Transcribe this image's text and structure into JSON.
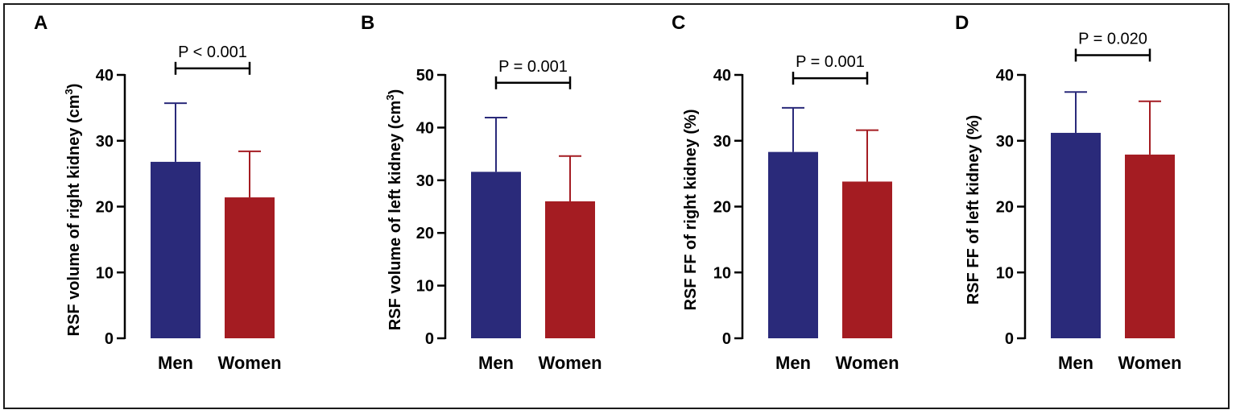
{
  "figure": {
    "colors": {
      "men": "#2a2a7a",
      "women": "#a41c22",
      "axis": "#000000"
    }
  },
  "chart_data": [
    {
      "type": "bar",
      "panel": "A",
      "categories": [
        "Men",
        "Women"
      ],
      "values": [
        26.8,
        21.4
      ],
      "errors": [
        8.9,
        7.0
      ],
      "ylabel": "RSF volume of right kidney (cm",
      "ylabel_superscript": "3",
      "ylabel_suffix": ")",
      "ylim": [
        0,
        40
      ],
      "yticks": [
        0,
        10,
        20,
        30,
        40
      ],
      "annotation": "P < 0.001",
      "annotation_y": 41
    },
    {
      "type": "bar",
      "panel": "B",
      "categories": [
        "Men",
        "Women"
      ],
      "values": [
        31.6,
        26.0
      ],
      "errors": [
        10.3,
        8.6
      ],
      "ylabel": "RSF volume of left kidney (cm",
      "ylabel_superscript": "3",
      "ylabel_suffix": ")",
      "ylim": [
        0,
        50
      ],
      "yticks": [
        0,
        10,
        20,
        30,
        40,
        50
      ],
      "annotation": "P = 0.001",
      "annotation_y": 48.5
    },
    {
      "type": "bar",
      "panel": "C",
      "categories": [
        "Men",
        "Women"
      ],
      "values": [
        28.3,
        23.8
      ],
      "errors": [
        6.7,
        7.8
      ],
      "ylabel": "RSF FF of right kidney  (%)",
      "ylabel_superscript": "",
      "ylabel_suffix": "",
      "ylim": [
        0,
        40
      ],
      "yticks": [
        0,
        10,
        20,
        30,
        40
      ],
      "annotation": "P = 0.001",
      "annotation_y": 39.5
    },
    {
      "type": "bar",
      "panel": "D",
      "categories": [
        "Men",
        "Women"
      ],
      "values": [
        31.2,
        27.9
      ],
      "errors": [
        6.2,
        8.1
      ],
      "ylabel": "RSF FF of left kidney (%)",
      "ylabel_superscript": "",
      "ylabel_suffix": "",
      "ylim": [
        0,
        40
      ],
      "yticks": [
        0,
        10,
        20,
        30,
        40
      ],
      "annotation": "P = 0.020",
      "annotation_y": 43
    }
  ]
}
